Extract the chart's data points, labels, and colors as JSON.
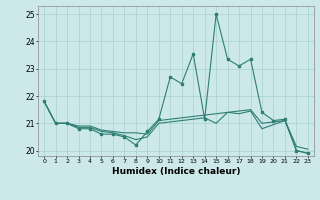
{
  "x": [
    0,
    1,
    2,
    3,
    4,
    5,
    6,
    7,
    8,
    9,
    10,
    11,
    12,
    13,
    14,
    15,
    16,
    17,
    18,
    19,
    20,
    21,
    22,
    23
  ],
  "line1": [
    21.8,
    21.0,
    21.0,
    20.8,
    20.8,
    20.6,
    20.6,
    20.5,
    20.2,
    20.7,
    21.15,
    22.7,
    22.45,
    23.55,
    21.15,
    25.0,
    23.35,
    23.1,
    23.35,
    21.4,
    21.1,
    21.15,
    20.0,
    19.9
  ],
  "line2": [
    21.8,
    21.0,
    21.0,
    20.9,
    20.9,
    20.75,
    20.7,
    20.65,
    20.65,
    20.6,
    21.1,
    21.15,
    21.2,
    21.25,
    21.3,
    21.35,
    21.4,
    21.45,
    21.5,
    21.0,
    21.05,
    21.1,
    20.15,
    20.05
  ],
  "line3": [
    21.8,
    21.0,
    21.0,
    20.85,
    20.85,
    20.7,
    20.65,
    20.55,
    20.4,
    20.5,
    21.0,
    21.05,
    21.1,
    21.15,
    21.2,
    21.0,
    21.4,
    21.35,
    21.45,
    20.8,
    20.95,
    21.1,
    20.0,
    19.9
  ],
  "line_color": "#2e7f72",
  "bg_color": "#cce8e8",
  "grid_color": "#aed4d4",
  "xlabel": "Humidex (Indice chaleur)",
  "xlim": [
    -0.5,
    23.5
  ],
  "ylim": [
    19.8,
    25.3
  ],
  "yticks": [
    20,
    21,
    22,
    23,
    24,
    25
  ],
  "xticks": [
    0,
    1,
    2,
    3,
    4,
    5,
    6,
    7,
    8,
    9,
    10,
    11,
    12,
    13,
    14,
    15,
    16,
    17,
    18,
    19,
    20,
    21,
    22,
    23
  ]
}
